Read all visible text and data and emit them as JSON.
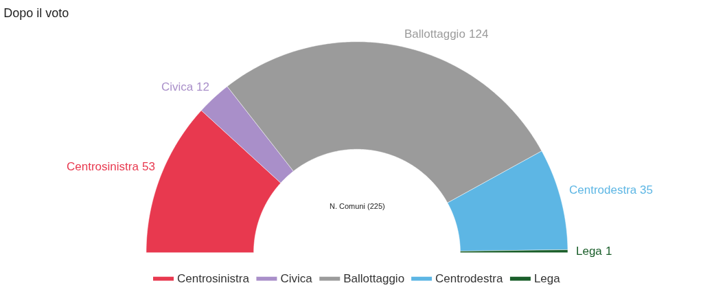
{
  "chart_data": {
    "type": "donut",
    "title": "Dopo il voto",
    "categories": [
      "Centrosinistra",
      "Civica",
      "Ballottaggio",
      "Centrodestra",
      "Lega"
    ],
    "values": [
      53,
      12,
      124,
      35,
      1
    ],
    "colors": [
      "#e8394f",
      "#a98fc9",
      "#9b9b9b",
      "#5db6e4",
      "#1a5e2a"
    ],
    "data_labels": true,
    "legend": "bottom",
    "annotations": [
      "N. Comuni (225)"
    ]
  }
}
